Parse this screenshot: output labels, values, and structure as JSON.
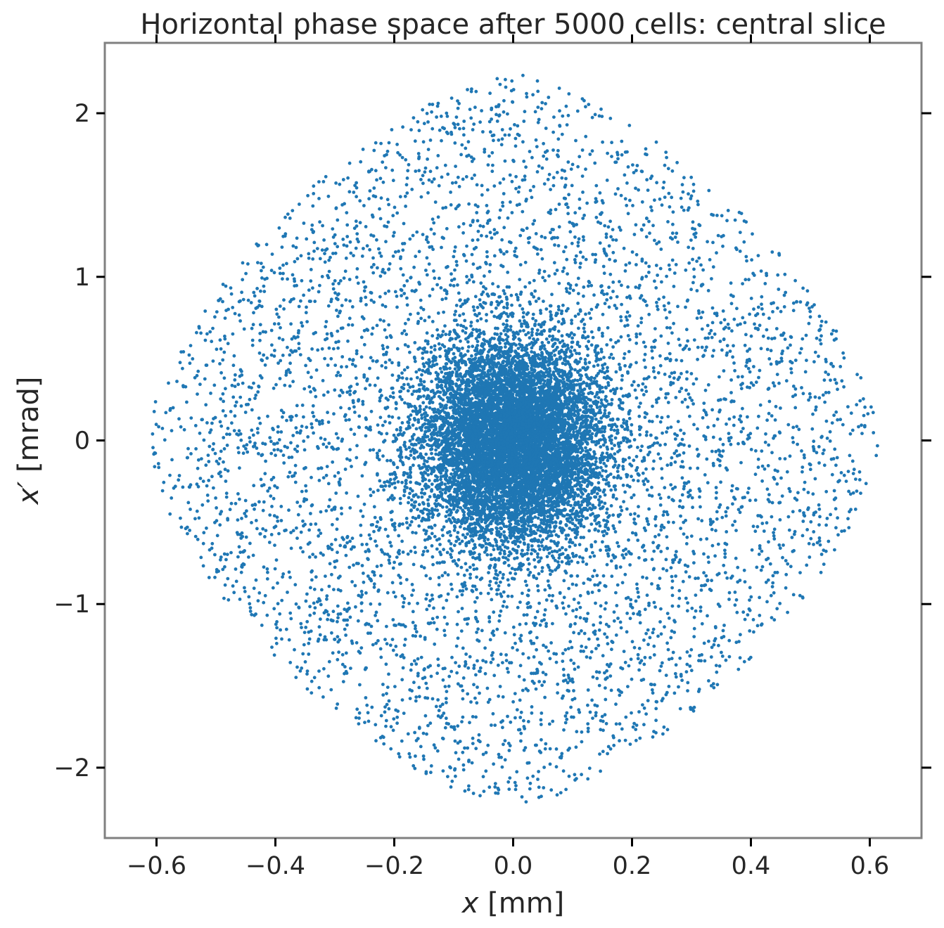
{
  "chart_data": {
    "type": "scatter",
    "title": "Horizontal phase space after 5000 cells: central slice",
    "xlabel_var": "x",
    "xlabel_unit": " [mm]",
    "ylabel_var": "x′",
    "ylabel_unit": " [mrad]",
    "xlim": [
      -0.687,
      0.687
    ],
    "ylim": [
      -2.43,
      2.43
    ],
    "xticks": [
      -0.6,
      -0.4,
      -0.2,
      0.0,
      0.2,
      0.4,
      0.6
    ],
    "xtick_labels": [
      "−0.6",
      "−0.4",
      "−0.2",
      "0.0",
      "0.2",
      "0.4",
      "0.6"
    ],
    "yticks": [
      -2,
      -1,
      0,
      1,
      2
    ],
    "ytick_labels": [
      "−2",
      "−1",
      "0",
      "1",
      "2"
    ],
    "grid": false,
    "marker_color": "#1f77b4",
    "frame_color": "#808080",
    "tick_color": "#000000",
    "series": [
      {
        "distribution": "gaussian core with diffuse diamond-shaped halo",
        "core": {
          "count": 9000,
          "x_mean": 0.0,
          "x_std": 0.075,
          "y_mean": 0.0,
          "y_std": 0.3
        },
        "halo": {
          "count": 5200,
          "x_range": [
            -0.62,
            0.62
          ],
          "y_range": [
            -2.24,
            2.24
          ]
        }
      }
    ]
  }
}
